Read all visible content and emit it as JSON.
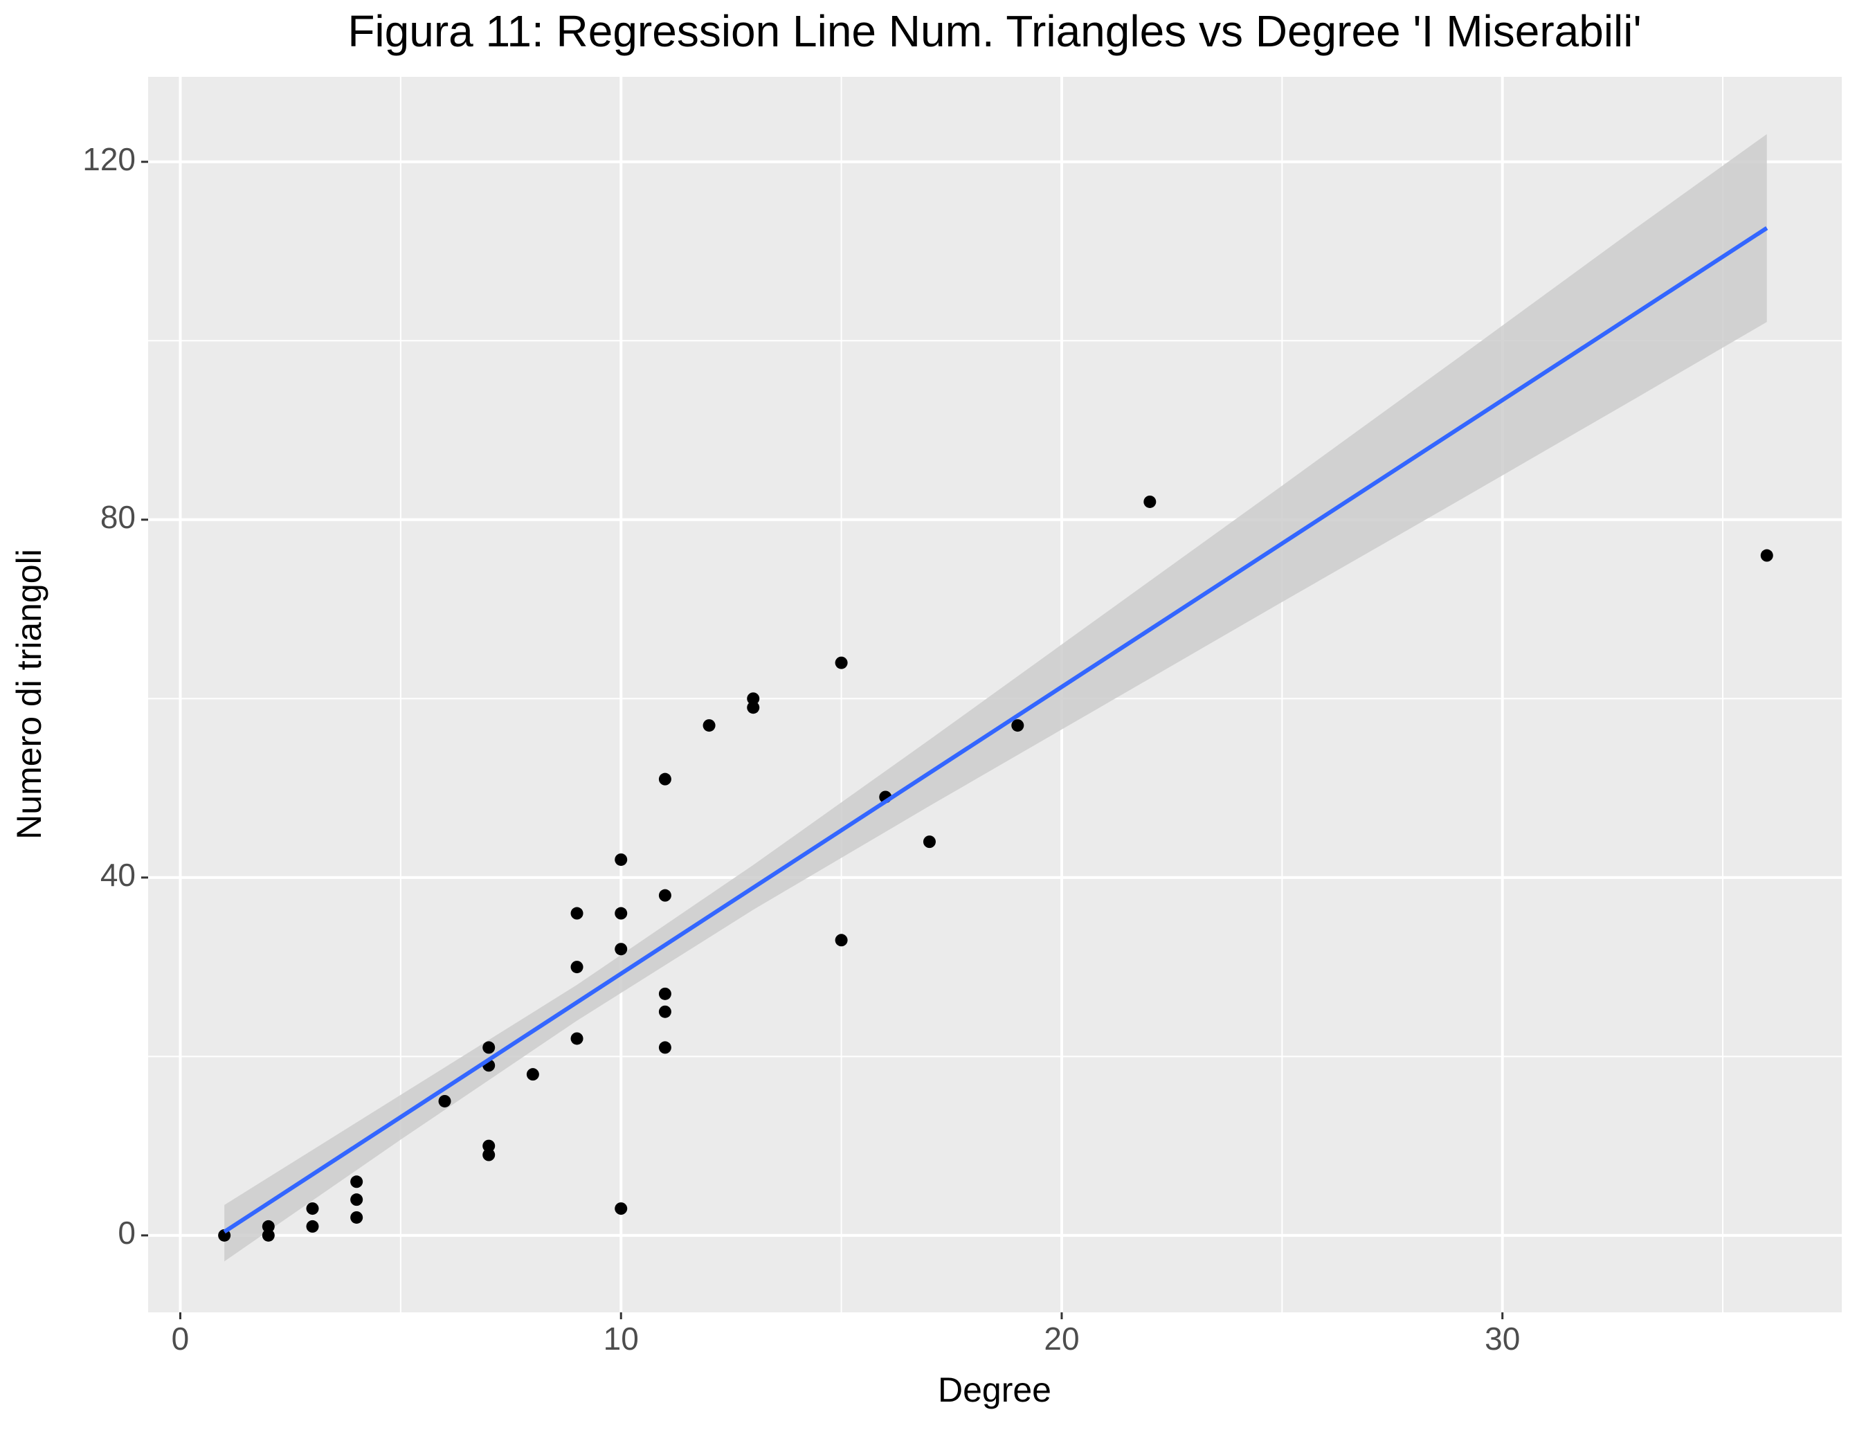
{
  "chart_data": {
    "type": "scatter",
    "title": "Figura 11: Regression Line Num. Triangles vs Degree 'I Miserabili'",
    "x_label": "Degree",
    "y_label": "Numero di triangoli",
    "x": [
      1,
      2,
      2,
      3,
      3,
      4,
      4,
      4,
      6,
      7,
      7,
      7,
      7,
      8,
      9,
      9,
      9,
      10,
      10,
      10,
      10,
      11,
      11,
      11,
      11,
      11,
      12,
      13,
      13,
      15,
      15,
      16,
      17,
      19,
      22,
      36
    ],
    "values": [
      0,
      1,
      0,
      3,
      1,
      6,
      4,
      2,
      15,
      21,
      19,
      10,
      9,
      18,
      36,
      30,
      22,
      42,
      36,
      32,
      3,
      51,
      38,
      27,
      25,
      21,
      57,
      60,
      59,
      64,
      33,
      49,
      44,
      57,
      82,
      76
    ],
    "point_color": "#000000",
    "fit": {
      "x": [
        1,
        36
      ],
      "values": [
        0.4,
        112.6
      ],
      "color": "#3366ff"
    },
    "band": {
      "x": [
        1,
        5,
        9,
        13,
        17,
        21,
        25,
        29,
        33,
        36
      ],
      "lower": [
        -2.9,
        10.7,
        24,
        36.4,
        48.0,
        59.4,
        70.8,
        82.1,
        93.5,
        102.1
      ],
      "upper": [
        3.4,
        15.7,
        28,
        41.4,
        55.4,
        69.6,
        83.8,
        98.1,
        112.5,
        123.1
      ],
      "color": "#cccccc"
    },
    "xlim": [
      -0.73,
      37.7
    ],
    "ylim": [
      -8.6,
      129.5
    ],
    "xticks": [
      0,
      10,
      20,
      30
    ],
    "yticks": [
      0,
      40,
      80,
      120
    ],
    "xminor": [
      5,
      15,
      25,
      35
    ],
    "yminor": [
      20,
      60,
      100
    ],
    "grid": true
  }
}
